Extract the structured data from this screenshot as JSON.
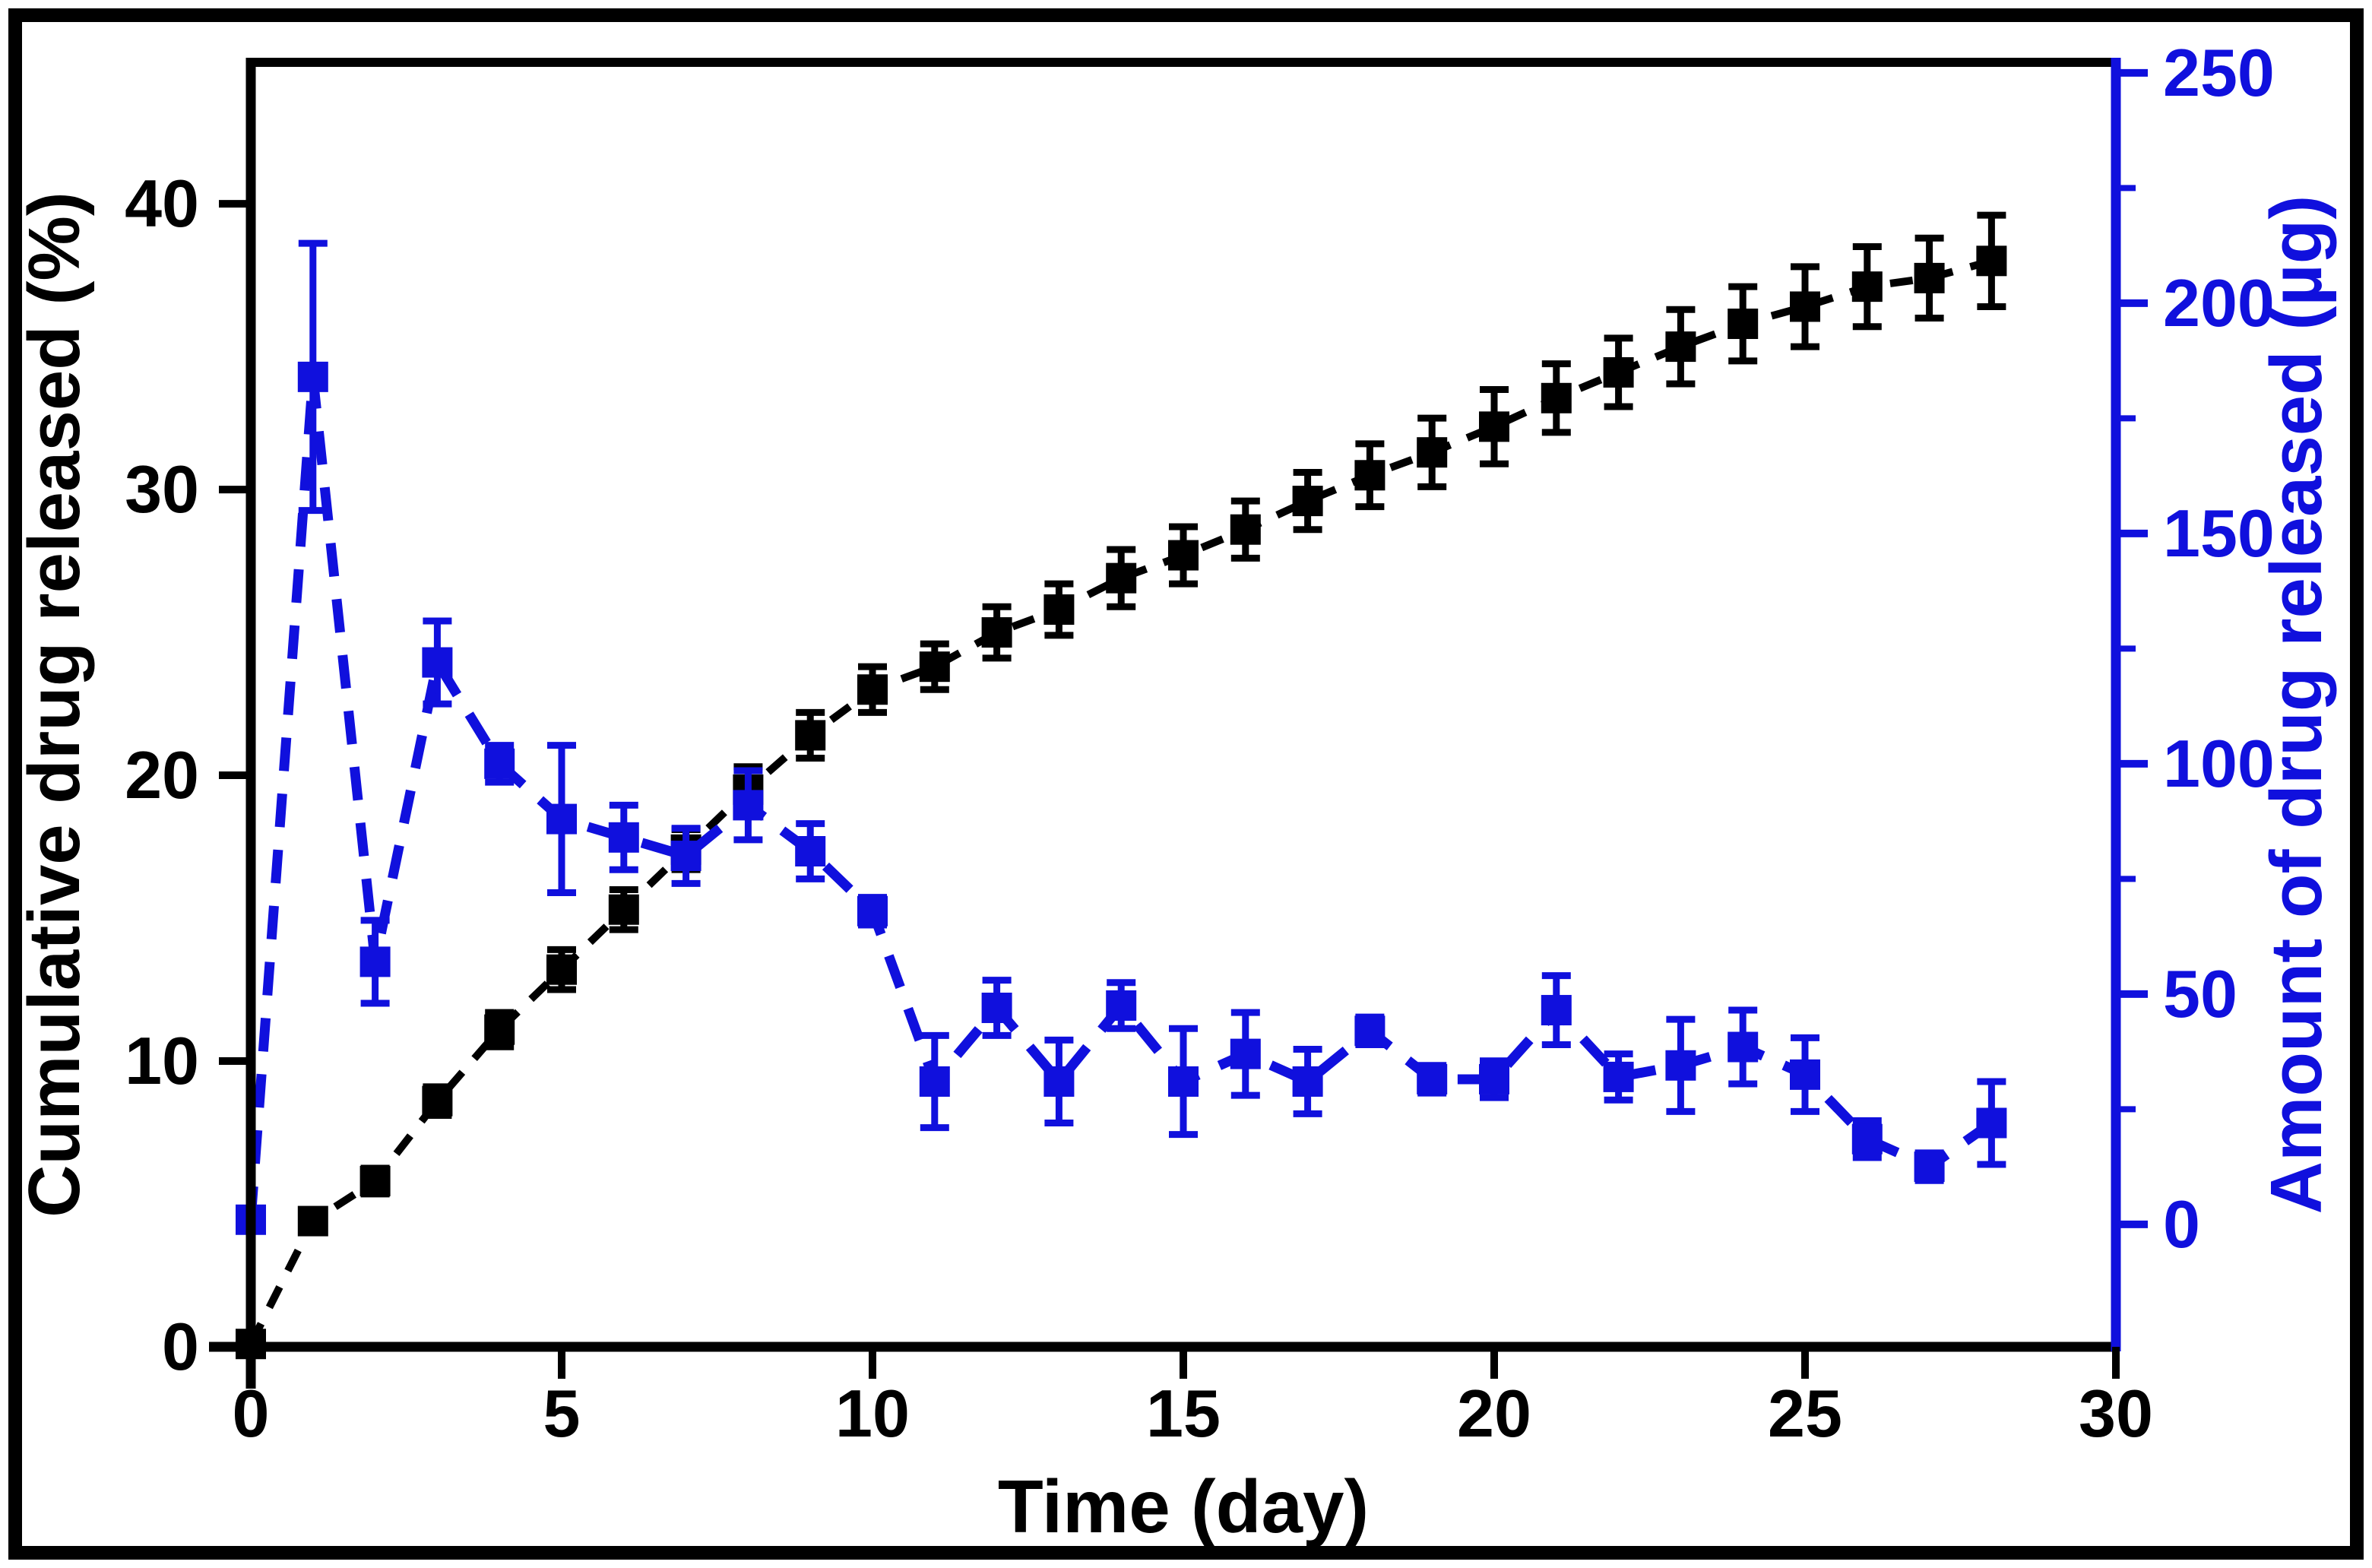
{
  "chart_data": {
    "type": "line",
    "title": "",
    "xlabel": "Time (day)",
    "xlim": [
      0,
      30
    ],
    "x_ticks": [
      0,
      5,
      10,
      15,
      20,
      25,
      30
    ],
    "days": [
      0,
      1,
      2,
      3,
      4,
      5,
      6,
      7,
      8,
      9,
      10,
      11,
      12,
      13,
      14,
      15,
      16,
      17,
      18,
      19,
      20,
      21,
      22,
      23,
      24,
      25,
      26,
      27,
      28
    ],
    "grid": false,
    "legend": "none",
    "left_axis": {
      "label": "Cumulative drug released (%)",
      "color": "#000000",
      "ticks": [
        0,
        10,
        20,
        30,
        40
      ],
      "range": [
        0,
        44.95
      ]
    },
    "right_axis": {
      "label": "Amount of drug released (µg)",
      "color": "#1010dd",
      "ticks": [
        0,
        50,
        100,
        150,
        200,
        250
      ],
      "minor_ticks": [
        25,
        75,
        125,
        175,
        225
      ],
      "range": [
        -26.6,
        252.3
      ]
    },
    "series": [
      {
        "name": "Cumulative drug released (%)",
        "axis": "left",
        "color": "#000000",
        "marker": "square",
        "line": "dashed",
        "values": [
          0.1,
          4.4,
          5.8,
          8.6,
          11.1,
          13.2,
          15.3,
          17.4,
          19.5,
          21.4,
          23.0,
          23.8,
          25.0,
          25.8,
          26.9,
          27.7,
          28.6,
          29.6,
          30.5,
          31.3,
          32.2,
          33.2,
          34.1,
          35.0,
          35.8,
          36.4,
          37.1,
          37.4,
          38.0
        ],
        "errors": [
          0.15,
          0.4,
          0.45,
          0.5,
          0.6,
          0.7,
          0.7,
          0.7,
          0.8,
          0.8,
          0.8,
          0.8,
          0.9,
          0.9,
          1.0,
          1.0,
          1.0,
          1.0,
          1.1,
          1.2,
          1.3,
          1.2,
          1.2,
          1.3,
          1.3,
          1.4,
          1.4,
          1.4,
          1.6
        ]
      },
      {
        "name": "Amount of drug released (µg)",
        "axis": "right",
        "color": "#1010dd",
        "marker": "square",
        "line": "dashed",
        "values": [
          1,
          184,
          57,
          122,
          100,
          88,
          84,
          80,
          91,
          81,
          68,
          31,
          47,
          31,
          47.5,
          31,
          37,
          31,
          42,
          31.5,
          31.5,
          46.5,
          32,
          34.5,
          38.5,
          32.5,
          18.5,
          12.5,
          22
        ],
        "errors": [
          0.5,
          29,
          9,
          9,
          4,
          16,
          7,
          6,
          7.5,
          6,
          3,
          10,
          6,
          9,
          5,
          11.5,
          9,
          7,
          3,
          3,
          4,
          7.5,
          5,
          10,
          8,
          8,
          4,
          3,
          9
        ]
      }
    ]
  }
}
